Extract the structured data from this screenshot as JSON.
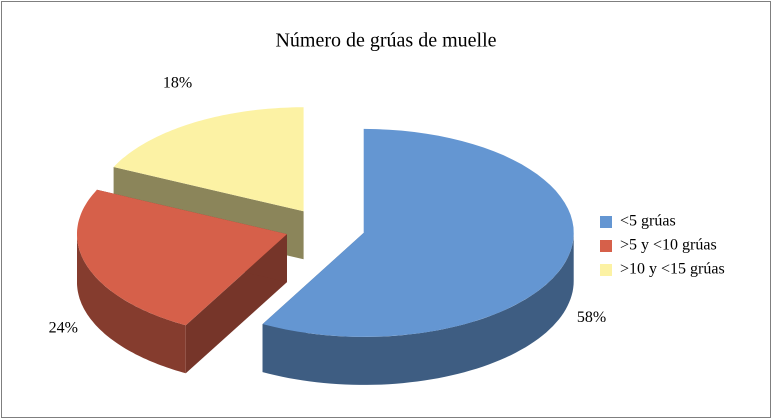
{
  "chart_data": {
    "type": "pie",
    "title": "Número de grúas de muelle",
    "categories": [
      "<5 grúas",
      ">5 y <10 grúas",
      ">10 y <15 grúas"
    ],
    "values": [
      58,
      24,
      18
    ],
    "value_labels": [
      "58%",
      "24%",
      "18%"
    ],
    "colors": [
      "#6496d2",
      "#d6604a",
      "#fcf2a4"
    ],
    "legend": "right",
    "exploded": true,
    "three_d": true
  }
}
